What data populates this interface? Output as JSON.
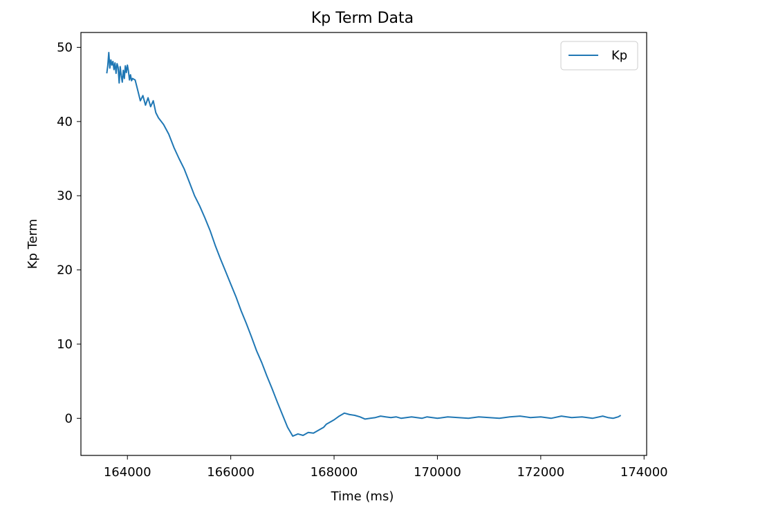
{
  "chart_data": {
    "type": "line",
    "title": "Kp Term Data",
    "xlabel": "Time (ms)",
    "ylabel": "Kp Term",
    "xlim": [
      163100,
      174050
    ],
    "ylim": [
      -5,
      52
    ],
    "xticks": [
      164000,
      166000,
      168000,
      170000,
      172000,
      174000
    ],
    "yticks": [
      0,
      10,
      20,
      30,
      40,
      50
    ],
    "grid": false,
    "legend_position": "top-right",
    "series": [
      {
        "name": "Kp",
        "color": "#1f77b4",
        "x": [
          163600,
          163620,
          163640,
          163660,
          163680,
          163700,
          163720,
          163740,
          163760,
          163780,
          163800,
          163820,
          163840,
          163860,
          163880,
          163900,
          163920,
          163940,
          163960,
          163980,
          164000,
          164020,
          164040,
          164060,
          164080,
          164100,
          164150,
          164200,
          164250,
          164300,
          164350,
          164400,
          164450,
          164500,
          164550,
          164600,
          164700,
          164800,
          164900,
          165000,
          165100,
          165200,
          165300,
          165400,
          165500,
          165600,
          165700,
          165800,
          165900,
          166000,
          166100,
          166200,
          166300,
          166400,
          166500,
          166600,
          166700,
          166800,
          166900,
          167000,
          167100,
          167200,
          167300,
          167400,
          167500,
          167600,
          167700,
          167800,
          167850,
          167900,
          168000,
          168100,
          168200,
          168300,
          168400,
          168500,
          168600,
          168700,
          168800,
          168900,
          169000,
          169100,
          169200,
          169300,
          169400,
          169500,
          169600,
          169700,
          169800,
          169900,
          170000,
          170200,
          170400,
          170600,
          170800,
          171000,
          171200,
          171400,
          171600,
          171800,
          172000,
          172200,
          172400,
          172600,
          172800,
          173000,
          173200,
          173300,
          173400,
          173500,
          173550
        ],
        "values": [
          46.5,
          47.5,
          49.3,
          47.2,
          48.3,
          47.6,
          48.1,
          47.0,
          47.9,
          46.5,
          47.8,
          47.3,
          45.2,
          47.4,
          46.2,
          45.3,
          46.9,
          45.8,
          47.5,
          46.6,
          47.6,
          46.8,
          45.6,
          46.3,
          45.5,
          45.8,
          45.6,
          44.2,
          42.8,
          43.5,
          42.2,
          43.2,
          42.0,
          42.8,
          41.2,
          40.5,
          39.6,
          38.3,
          36.5,
          35.0,
          33.6,
          31.8,
          30.0,
          28.6,
          27.0,
          25.3,
          23.3,
          21.5,
          19.8,
          18.1,
          16.4,
          14.5,
          12.8,
          11.0,
          9.1,
          7.5,
          5.7,
          4.0,
          2.2,
          0.5,
          -1.2,
          -2.4,
          -2.1,
          -2.3,
          -1.9,
          -2.0,
          -1.6,
          -1.2,
          -0.8,
          -0.6,
          -0.2,
          0.3,
          0.7,
          0.5,
          0.4,
          0.2,
          -0.1,
          0.0,
          0.1,
          0.3,
          0.2,
          0.1,
          0.2,
          0.0,
          0.1,
          0.2,
          0.1,
          0.0,
          0.2,
          0.1,
          0.0,
          0.2,
          0.1,
          0.0,
          0.2,
          0.1,
          0.0,
          0.2,
          0.3,
          0.1,
          0.2,
          0.0,
          0.3,
          0.1,
          0.2,
          0.0,
          0.3,
          0.1,
          0.0,
          0.2,
          0.4
        ]
      }
    ]
  }
}
